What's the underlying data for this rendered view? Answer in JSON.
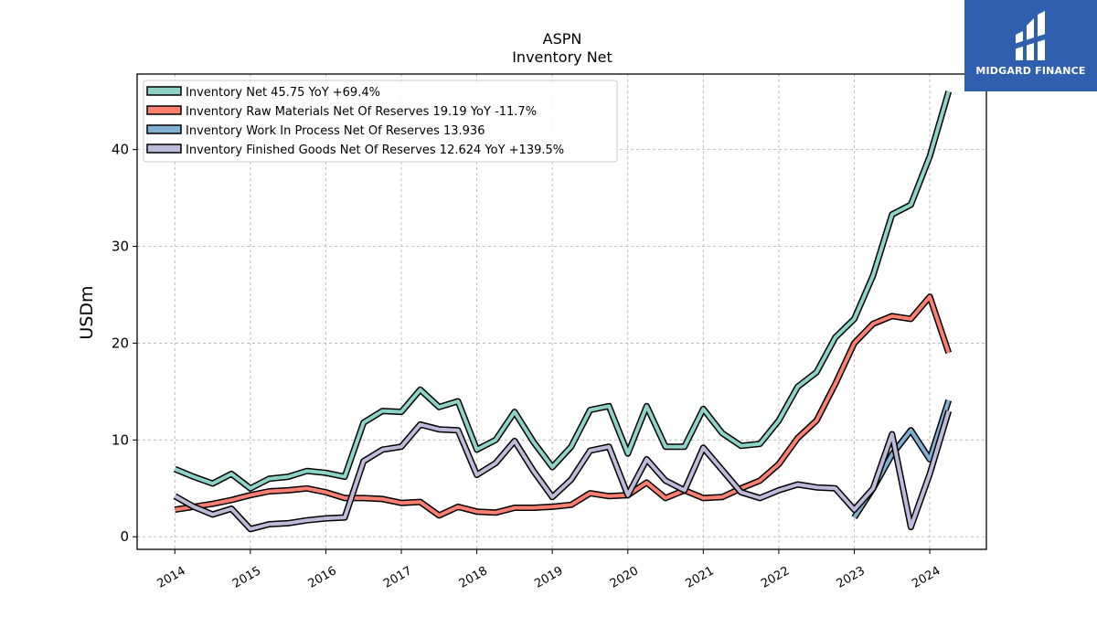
{
  "branding": {
    "name": "MIDGARD FINANCE",
    "color": "#2f5fae"
  },
  "chart_data": {
    "type": "line",
    "title": "ASPN",
    "subtitle": "Inventory Net",
    "xlabel": "",
    "ylabel": "USDm",
    "xlim": [
      2013.5,
      2024.75
    ],
    "ylim": [
      -1.3,
      47.8
    ],
    "yticks": [
      0,
      10,
      20,
      30,
      40
    ],
    "xticks": [
      2014,
      2015,
      2016,
      2017,
      2018,
      2019,
      2020,
      2021,
      2022,
      2023,
      2024
    ],
    "grid": true,
    "legend_position": "top-left",
    "series": [
      {
        "name": "Inventory Net  45.75 YoY +69.4%",
        "color": "#8dd3c7",
        "x": [
          2014.0,
          2014.25,
          2014.5,
          2014.75,
          2015.0,
          2015.25,
          2015.5,
          2015.75,
          2016.0,
          2016.25,
          2016.5,
          2016.75,
          2017.0,
          2017.25,
          2017.5,
          2017.75,
          2018.0,
          2018.25,
          2018.5,
          2018.75,
          2019.0,
          2019.25,
          2019.5,
          2019.75,
          2020.0,
          2020.25,
          2020.5,
          2020.75,
          2021.0,
          2021.25,
          2021.5,
          2021.75,
          2022.0,
          2022.25,
          2022.5,
          2022.75,
          2023.0,
          2023.25,
          2023.5,
          2023.75,
          2024.0,
          2024.25
        ],
        "y": [
          7.0,
          6.2,
          5.5,
          6.5,
          5.0,
          6.0,
          6.2,
          6.8,
          6.6,
          6.2,
          11.8,
          13.0,
          12.9,
          15.2,
          13.4,
          14.0,
          9.0,
          10.0,
          12.9,
          9.8,
          7.2,
          9.3,
          13.1,
          13.5,
          8.6,
          13.5,
          9.3,
          9.3,
          13.2,
          10.7,
          9.4,
          9.6,
          12.0,
          15.5,
          17.0,
          20.6,
          22.5,
          27.0,
          33.3,
          34.3,
          39.3,
          46.0
        ]
      },
      {
        "name": "Inventory Raw Materials Net Of Reserves  19.19 YoY -11.7%",
        "color": "#fb8072",
        "x": [
          2014.0,
          2014.25,
          2014.5,
          2014.75,
          2015.0,
          2015.25,
          2015.5,
          2015.75,
          2016.0,
          2016.25,
          2016.5,
          2016.75,
          2017.0,
          2017.25,
          2017.5,
          2017.75,
          2018.0,
          2018.25,
          2018.5,
          2018.75,
          2019.0,
          2019.25,
          2019.5,
          2019.75,
          2020.0,
          2020.25,
          2020.5,
          2020.75,
          2021.0,
          2021.25,
          2021.5,
          2021.75,
          2022.0,
          2022.25,
          2022.5,
          2022.75,
          2023.0,
          2023.25,
          2023.5,
          2023.75,
          2024.0,
          2024.25
        ],
        "y": [
          2.8,
          3.1,
          3.4,
          3.8,
          4.3,
          4.7,
          4.8,
          5.0,
          4.6,
          4.0,
          4.0,
          3.9,
          3.5,
          3.6,
          2.2,
          3.1,
          2.6,
          2.5,
          3.0,
          3.0,
          3.1,
          3.3,
          4.5,
          4.2,
          4.3,
          5.6,
          4.0,
          4.8,
          4.0,
          4.1,
          5.0,
          5.8,
          7.5,
          10.2,
          12.0,
          15.8,
          20.0,
          22.0,
          22.8,
          22.5,
          24.8,
          19.0
        ]
      },
      {
        "name": "Inventory Work In Process Net Of Reserves  13.936",
        "color": "#80b1d3",
        "x": [
          2023.0,
          2023.25,
          2023.5,
          2023.75,
          2024.0,
          2024.25
        ],
        "y": [
          2.0,
          5.0,
          8.5,
          11.0,
          8.0,
          14.1
        ]
      },
      {
        "name": "Inventory Finished Goods Net Of Reserves  12.624 YoY +139.5%",
        "color": "#bebada",
        "x": [
          2014.0,
          2014.25,
          2014.5,
          2014.75,
          2015.0,
          2015.25,
          2015.5,
          2015.75,
          2016.0,
          2016.25,
          2016.5,
          2016.75,
          2017.0,
          2017.25,
          2017.5,
          2017.75,
          2018.0,
          2018.25,
          2018.5,
          2018.75,
          2019.0,
          2019.25,
          2019.5,
          2019.75,
          2020.0,
          2020.25,
          2020.5,
          2020.75,
          2021.0,
          2021.25,
          2021.5,
          2021.75,
          2022.0,
          2022.25,
          2022.5,
          2022.75,
          2023.0,
          2023.25,
          2023.5,
          2023.75,
          2024.0,
          2024.25
        ],
        "y": [
          4.2,
          3.1,
          2.3,
          2.9,
          0.8,
          1.3,
          1.4,
          1.7,
          1.9,
          2.0,
          7.8,
          9.0,
          9.3,
          11.6,
          11.1,
          11.0,
          6.4,
          7.6,
          9.9,
          6.8,
          4.1,
          5.9,
          8.9,
          9.3,
          4.3,
          8.0,
          5.8,
          4.8,
          9.2,
          6.9,
          4.6,
          4.0,
          4.8,
          5.4,
          5.1,
          5.0,
          2.8,
          5.0,
          10.6,
          1.0,
          6.5,
          13.0
        ]
      }
    ]
  }
}
